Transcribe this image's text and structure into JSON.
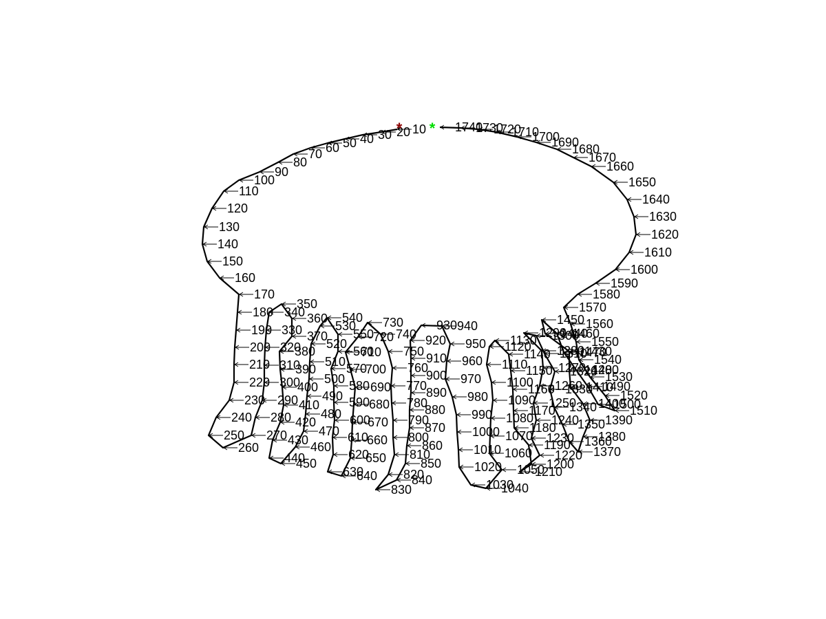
{
  "colors": {
    "outline": "#000000",
    "start_marker": "#8b0000",
    "end_marker": "#00dd00"
  },
  "markers": {
    "start_symbol": "*",
    "end_symbol": "*"
  },
  "labels": [
    "10",
    "20",
    "30",
    "40",
    "50",
    "60",
    "70",
    "80",
    "90",
    "100",
    "110",
    "120",
    "130",
    "140",
    "150",
    "160",
    "170",
    "180",
    "190",
    "200",
    "210",
    "220",
    "230",
    "240",
    "250",
    "260",
    "270",
    "280",
    "290",
    "300",
    "310",
    "320",
    "330",
    "340",
    "350",
    "360",
    "370",
    "380",
    "390",
    "400",
    "410",
    "420",
    "430",
    "440",
    "450",
    "460",
    "470",
    "480",
    "490",
    "500",
    "510",
    "520",
    "530",
    "540",
    "550",
    "560",
    "570",
    "580",
    "590",
    "600",
    "610",
    "620",
    "630",
    "640",
    "650",
    "660",
    "670",
    "680",
    "690",
    "700",
    "710",
    "720",
    "730",
    "740",
    "750",
    "760",
    "770",
    "780",
    "790",
    "800",
    "810",
    "820",
    "830",
    "840",
    "850",
    "860",
    "870",
    "880",
    "890",
    "900",
    "910",
    "920",
    "930",
    "940",
    "950",
    "960",
    "970",
    "980",
    "990",
    "1000",
    "1010",
    "1020",
    "1030",
    "1040",
    "1050",
    "1060",
    "1070",
    "1080",
    "1090",
    "1100",
    "1110",
    "1120",
    "1130",
    "1140",
    "1150",
    "1160",
    "1170",
    "1180",
    "1190",
    "1200",
    "1210",
    "1220",
    "1230",
    "1240",
    "1250",
    "1260",
    "1270",
    "1280",
    "1290",
    "1300",
    "1310",
    "1320",
    "1330",
    "1340",
    "1350",
    "1360",
    "1370",
    "1380",
    "1390",
    "1400",
    "1410",
    "1420",
    "1430",
    "1440",
    "1450",
    "1460",
    "1470",
    "1480",
    "1490",
    "1500",
    "1510",
    "1520",
    "1530",
    "1540",
    "1550",
    "1560",
    "1570",
    "1580",
    "1590",
    "1600",
    "1610",
    "1620",
    "1630",
    "1640",
    "1650",
    "1660",
    "1670",
    "1680",
    "1690",
    "1700",
    "1710",
    "1720",
    "1730",
    "1740"
  ]
}
